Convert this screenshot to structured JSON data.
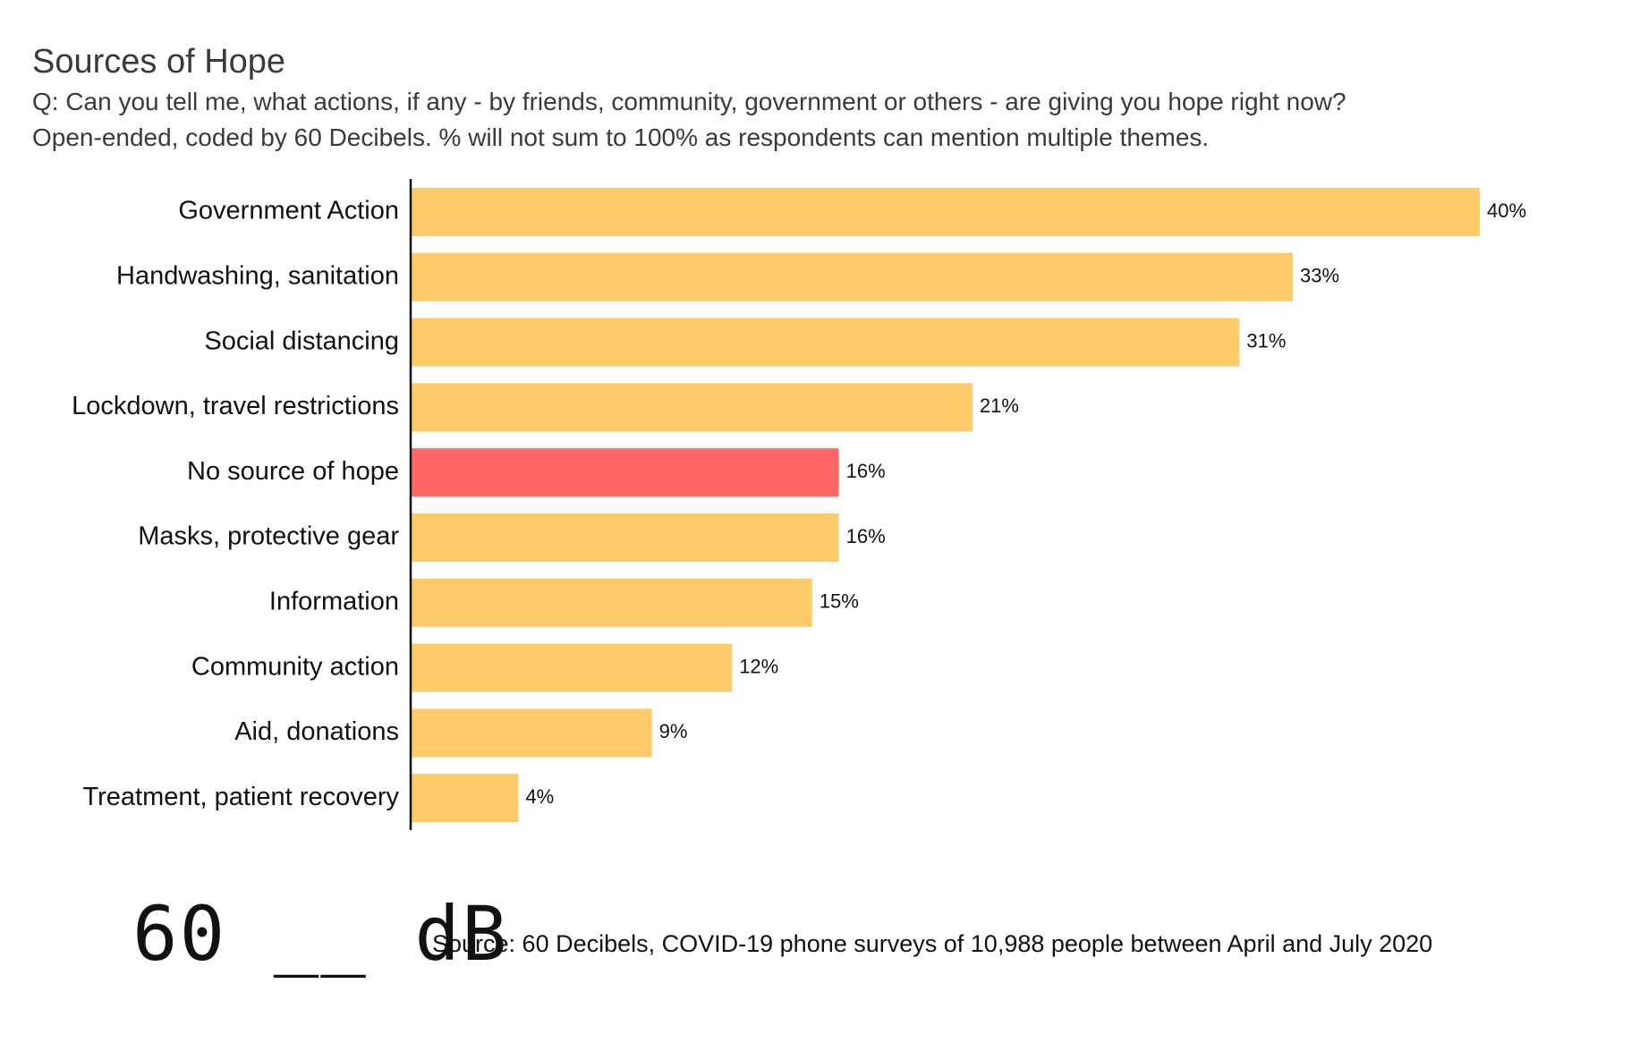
{
  "chart_data": {
    "type": "bar",
    "orientation": "horizontal",
    "title": "Sources of Hope",
    "subtitle_lines": [
      "Q: Can you tell me, what actions, if any - by friends, community, government or others - are giving you hope right now?",
      "Open-ended, coded by 60 Decibels. % will not sum to 100% as respondents can mention multiple themes."
    ],
    "categories": [
      "Government Action",
      "Handwashing, sanitation",
      "Social distancing",
      "Lockdown, travel restrictions",
      "No source of hope",
      "Masks, protective gear",
      "Information",
      "Community action",
      "Aid, donations",
      "Treatment, patient recovery"
    ],
    "values": [
      40,
      33,
      31,
      21,
      16,
      16,
      15,
      12,
      9,
      4
    ],
    "value_labels": [
      "40%",
      "33%",
      "31%",
      "21%",
      "16%",
      "16%",
      "15%",
      "12%",
      "9%",
      "4%"
    ],
    "highlight_category": "No source of hope",
    "xlim": [
      0,
      40
    ],
    "xlabel": "",
    "ylabel": "",
    "grid": false,
    "colors": {
      "default_bar": "#FECB6A",
      "highlight_bar": "#FF6767",
      "axis": "#111111"
    }
  },
  "footer": {
    "logo_text": "60 __ dB",
    "source": "Source: 60 Decibels, COVID-19 phone surveys of 10,988 people between April and July 2020"
  }
}
